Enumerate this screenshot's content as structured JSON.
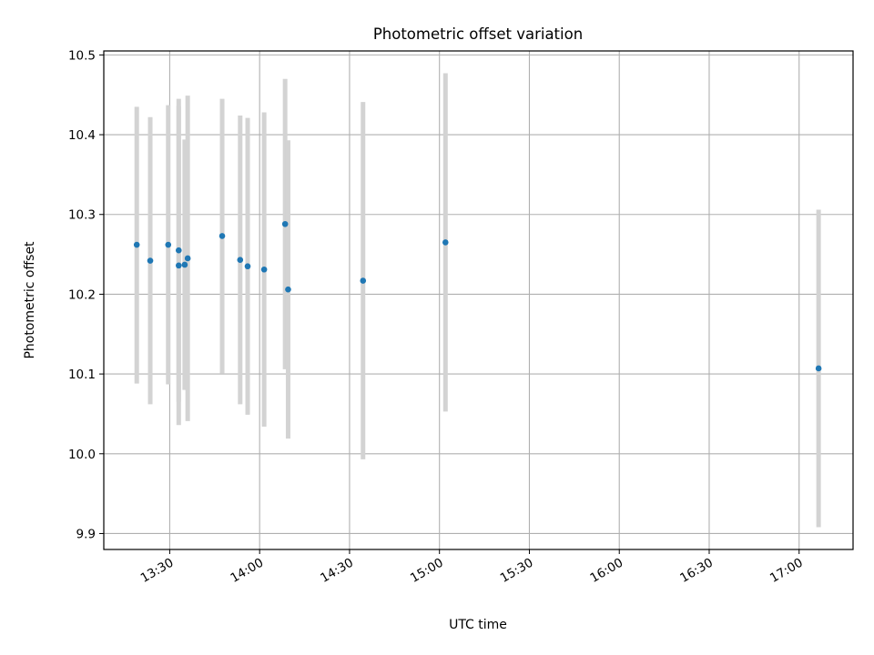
{
  "chart_data": {
    "type": "scatter",
    "title": "Photometric offset variation",
    "xlabel": "UTC time",
    "ylabel": "Photometric offset",
    "xlim": [
      "13:08:00",
      "17:18:00"
    ],
    "ylim": [
      9.88,
      10.505
    ],
    "grid": true,
    "x_ticks": [
      "13:30",
      "14:00",
      "14:30",
      "15:00",
      "15:30",
      "16:00",
      "16:30",
      "17:00"
    ],
    "y_ticks": [
      9.9,
      10.0,
      10.1,
      10.2,
      10.3,
      10.4,
      10.5
    ],
    "marker_color": "#1f77b4",
    "errorbar_color": "#d3d3d3",
    "points": [
      {
        "x": "13:19:00",
        "y": 10.262,
        "ymin": 10.088,
        "ymax": 10.435
      },
      {
        "x": "13:23:30",
        "y": 10.242,
        "ymin": 10.062,
        "ymax": 10.422
      },
      {
        "x": "13:29:30",
        "y": 10.262,
        "ymin": 10.087,
        "ymax": 10.437
      },
      {
        "x": "13:33:00",
        "y": 10.255,
        "ymin": 10.065,
        "ymax": 10.445
      },
      {
        "x": "13:33:00",
        "y": 10.236,
        "ymin": 10.036,
        "ymax": 10.436
      },
      {
        "x": "13:35:00",
        "y": 10.237,
        "ymin": 10.08,
        "ymax": 10.394
      },
      {
        "x": "13:36:00",
        "y": 10.245,
        "ymin": 10.041,
        "ymax": 10.449
      },
      {
        "x": "13:47:30",
        "y": 10.273,
        "ymin": 10.101,
        "ymax": 10.445
      },
      {
        "x": "13:53:30",
        "y": 10.243,
        "ymin": 10.062,
        "ymax": 10.424
      },
      {
        "x": "13:56:00",
        "y": 10.235,
        "ymin": 10.049,
        "ymax": 10.421
      },
      {
        "x": "14:01:30",
        "y": 10.231,
        "ymin": 10.034,
        "ymax": 10.428
      },
      {
        "x": "14:08:30",
        "y": 10.288,
        "ymin": 10.106,
        "ymax": 10.47
      },
      {
        "x": "14:09:30",
        "y": 10.206,
        "ymin": 10.019,
        "ymax": 10.393
      },
      {
        "x": "14:34:30",
        "y": 10.217,
        "ymin": 9.993,
        "ymax": 10.441
      },
      {
        "x": "15:02:00",
        "y": 10.265,
        "ymin": 10.053,
        "ymax": 10.477
      },
      {
        "x": "17:06:30",
        "y": 10.107,
        "ymin": 9.908,
        "ymax": 10.306
      }
    ]
  }
}
